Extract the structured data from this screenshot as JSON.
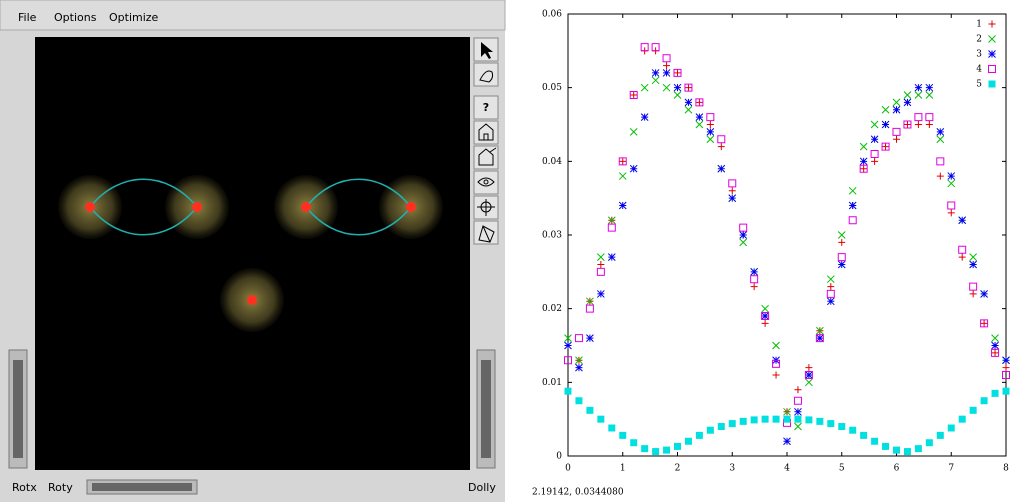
{
  "menu": [
    "File",
    "Options",
    "Optimize"
  ],
  "toolbar_help": "?",
  "wheels": {
    "left": "Rotx",
    "bottom": "Roty",
    "right": "Dolly"
  },
  "status": "2.19142,  0.0344080",
  "chart_data": {
    "type": "scatter",
    "x": [
      0,
      0.2,
      0.4,
      0.6,
      0.8,
      1.0,
      1.2,
      1.4,
      1.6,
      1.8,
      2.0,
      2.2,
      2.4,
      2.6,
      2.8,
      3.0,
      3.2,
      3.4,
      3.6,
      3.8,
      4.0,
      4.2,
      4.4,
      4.6,
      4.8,
      5.0,
      5.2,
      5.4,
      5.6,
      5.8,
      6.0,
      6.2,
      6.4,
      6.6,
      6.8,
      7.0,
      7.2,
      7.4,
      7.6,
      7.8,
      8.0
    ],
    "series": [
      {
        "name": "1",
        "color": "#e00000",
        "marker": "plus",
        "values": [
          0.015,
          0.013,
          0.021,
          0.026,
          0.032,
          0.04,
          0.049,
          0.055,
          0.055,
          0.053,
          0.052,
          0.05,
          0.048,
          0.045,
          0.042,
          0.036,
          0.03,
          0.023,
          0.018,
          0.011,
          0.006,
          0.009,
          0.012,
          0.017,
          0.023,
          0.029,
          0.034,
          0.039,
          0.04,
          0.042,
          0.043,
          0.045,
          0.045,
          0.045,
          0.038,
          0.033,
          0.027,
          0.022,
          0.018,
          0.014,
          0.012
        ]
      },
      {
        "name": "2",
        "color": "#00c000",
        "marker": "cross",
        "values": [
          0.016,
          0.013,
          0.021,
          0.027,
          0.032,
          0.038,
          0.044,
          0.05,
          0.051,
          0.05,
          0.049,
          0.047,
          0.045,
          0.043,
          0.039,
          0.035,
          0.029,
          0.025,
          0.02,
          0.015,
          0.006,
          0.004,
          0.01,
          0.017,
          0.024,
          0.03,
          0.036,
          0.042,
          0.045,
          0.047,
          0.048,
          0.049,
          0.049,
          0.049,
          0.043,
          0.037,
          0.032,
          0.027,
          0.022,
          0.016,
          0.013
        ]
      },
      {
        "name": "3",
        "color": "#0000f0",
        "marker": "star",
        "values": [
          0.015,
          0.012,
          0.016,
          0.022,
          0.027,
          0.034,
          0.039,
          0.046,
          0.052,
          0.052,
          0.05,
          0.048,
          0.046,
          0.044,
          0.039,
          0.035,
          0.03,
          0.025,
          0.019,
          0.013,
          0.002,
          0.006,
          0.011,
          0.016,
          0.021,
          0.026,
          0.034,
          0.04,
          0.043,
          0.045,
          0.047,
          0.048,
          0.05,
          0.05,
          0.044,
          0.038,
          0.032,
          0.026,
          0.022,
          0.015,
          0.013
        ]
      },
      {
        "name": "4",
        "color": "#e000e0",
        "marker": "box",
        "values": [
          0.013,
          0.016,
          0.02,
          0.025,
          0.031,
          0.04,
          0.049,
          0.0555,
          0.0555,
          0.054,
          0.052,
          0.05,
          0.048,
          0.046,
          0.043,
          0.037,
          0.031,
          0.024,
          0.019,
          0.0125,
          0.0045,
          0.0075,
          0.011,
          0.016,
          0.022,
          0.027,
          0.032,
          0.039,
          0.041,
          0.042,
          0.044,
          0.045,
          0.046,
          0.046,
          0.04,
          0.034,
          0.028,
          0.023,
          0.018,
          0.014,
          0.011
        ]
      },
      {
        "name": "5",
        "color": "#00e0e0",
        "marker": "filled-box",
        "values": [
          0.0088,
          0.0075,
          0.0062,
          0.005,
          0.0038,
          0.0028,
          0.0018,
          0.001,
          0.0006,
          0.0008,
          0.0013,
          0.002,
          0.0028,
          0.0035,
          0.004,
          0.0044,
          0.0047,
          0.0049,
          0.005,
          0.005,
          0.005,
          0.005,
          0.0049,
          0.0047,
          0.0044,
          0.004,
          0.0035,
          0.0028,
          0.002,
          0.0013,
          0.0008,
          0.0006,
          0.001,
          0.0018,
          0.0028,
          0.0038,
          0.005,
          0.0062,
          0.0075,
          0.0085,
          0.0088
        ]
      }
    ],
    "xlim": [
      0,
      8
    ],
    "xticks": [
      0,
      1,
      2,
      3,
      4,
      5,
      6,
      7,
      8
    ],
    "ylim": [
      0,
      0.06
    ],
    "yticks": [
      0,
      0.01,
      0.02,
      0.03,
      0.04,
      0.05,
      0.06
    ],
    "legend": "top-right",
    "grid": false
  }
}
